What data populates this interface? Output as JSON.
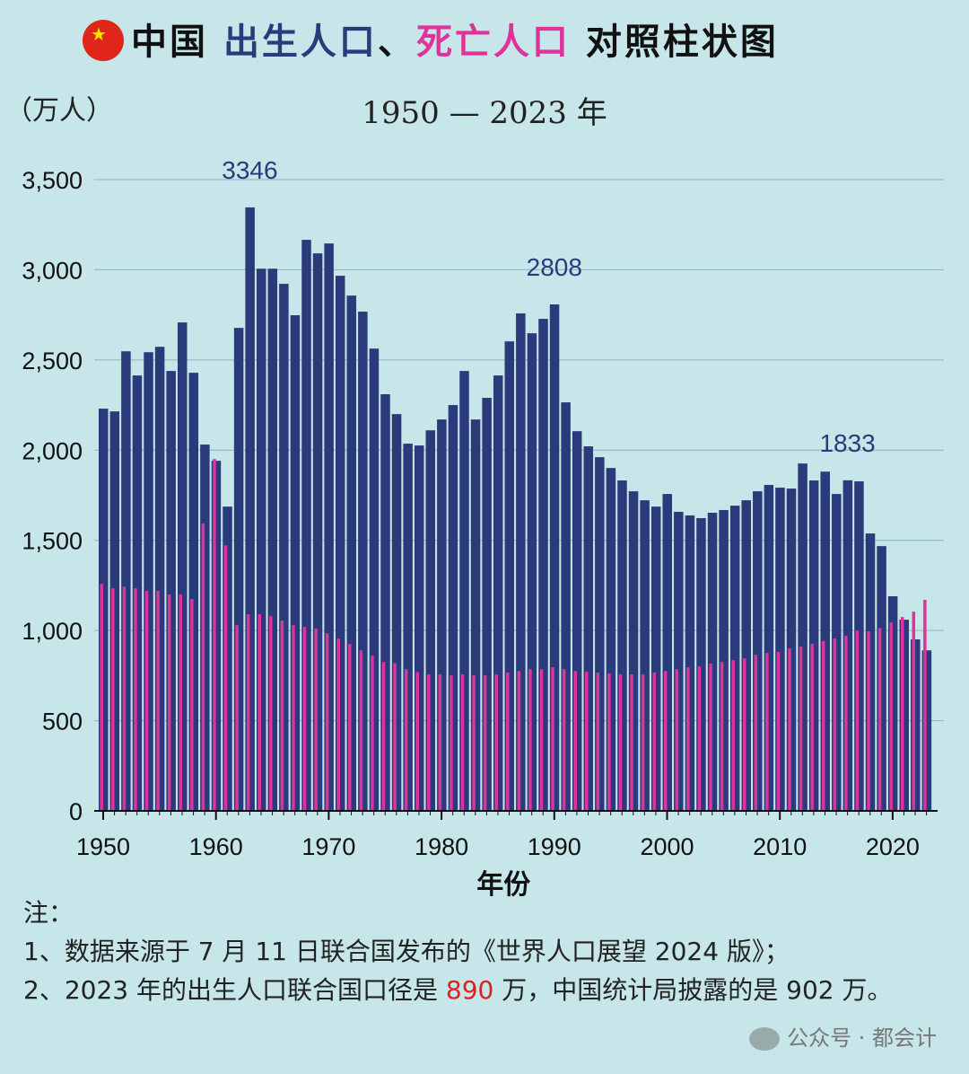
{
  "title": {
    "flag_icon": "china-flag-icon",
    "part1": "中国 ",
    "part2": "出生人口",
    "part3": "、",
    "part4": "死亡人口",
    "part5": " 对照柱状图"
  },
  "colors": {
    "births": "#2b3a7a",
    "deaths": "#e0339a",
    "background": "#c6e6ea"
  },
  "chart_data": {
    "type": "bar",
    "title": "中国 出生人口、死亡人口 对照柱状图",
    "subtitle": "1950 — 2023 年",
    "ylabel": "（万人）",
    "xlabel": "年份",
    "ylim": [
      0,
      3500
    ],
    "yticks": [
      0,
      500,
      1000,
      1500,
      2000,
      2500,
      3000,
      3500
    ],
    "ytick_labels": [
      "0",
      "500",
      "1,000",
      "1,500",
      "2,000",
      "2,500",
      "3,000",
      "3,500"
    ],
    "xticks": [
      1950,
      1960,
      1970,
      1980,
      1990,
      2000,
      2010,
      2020
    ],
    "grid": true,
    "x_start": 1950,
    "series": [
      {
        "values": [
          2230,
          2215,
          2548,
          2414,
          2543,
          2573,
          2439,
          2708,
          2429,
          2031,
          1941,
          1687,
          2678,
          3346,
          3006,
          3006,
          2922,
          2748,
          3166,
          3091,
          3146,
          2967,
          2857,
          2768,
          2563,
          2310,
          2200,
          2036,
          2026,
          2110,
          2170,
          2250,
          2439,
          2170,
          2290,
          2414,
          2603,
          2758,
          2648,
          2728,
          2808,
          2265,
          2105,
          2021,
          1961,
          1901,
          1832,
          1772,
          1722,
          1687,
          1757,
          1658,
          1638,
          1623,
          1653,
          1668,
          1692,
          1722,
          1772,
          1807,
          1792,
          1787,
          1926,
          1832,
          1881,
          1757,
          1833,
          1827,
          1538,
          1468,
          1190,
          1060,
          951,
          890
        ]
      },
      {
        "values": [
          1259,
          1234,
          1244,
          1234,
          1220,
          1220,
          1200,
          1200,
          1175,
          1593,
          1951,
          1473,
          1030,
          1090,
          1090,
          1080,
          1055,
          1030,
          1020,
          1010,
          985,
          955,
          925,
          890,
          860,
          826,
          820,
          786,
          770,
          757,
          757,
          752,
          757,
          752,
          752,
          757,
          767,
          776,
          786,
          786,
          796,
          786,
          776,
          771,
          767,
          762,
          757,
          757,
          757,
          767,
          776,
          786,
          796,
          801,
          816,
          826,
          836,
          846,
          866,
          876,
          881,
          901,
          911,
          926,
          941,
          956,
          971,
          1000,
          996,
          1015,
          1045,
          1075,
          1105,
          1170
        ]
      }
    ],
    "annotations": [
      {
        "x": 1963,
        "text": "3346"
      },
      {
        "x": 1990,
        "text": "2808"
      },
      {
        "x": 2016,
        "text": "1833"
      }
    ]
  },
  "notes": {
    "heading": "注：",
    "line1": "1、数据来源于 7 月 11 日联合国发布的《世界人口展望 2024 版》；",
    "line2a": "2、2023 年的出生人口联合国口径是 ",
    "line2b": "890",
    "line2c": " 万，中国统计局披露的是 902 万。"
  },
  "watermark": {
    "icon": "wechat-icon",
    "text": "公众号 · 都会计"
  }
}
